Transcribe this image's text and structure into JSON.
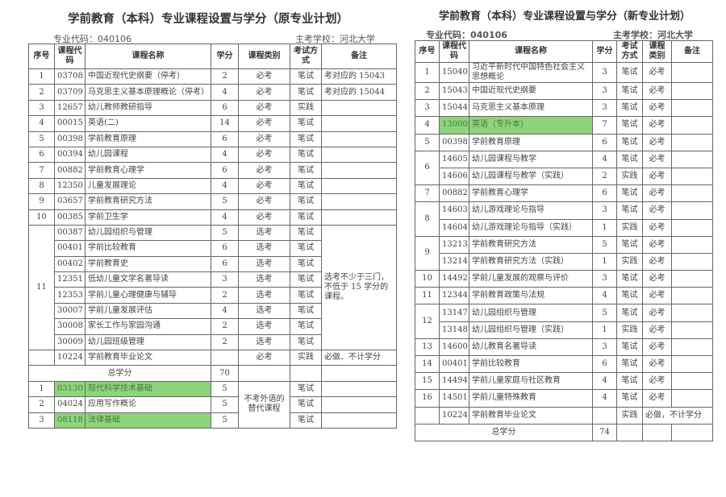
{
  "left": {
    "title": "学前教育（本科）专业课程设置与学分（原专业计划）",
    "major_code": "专业代码：040106",
    "school": "主考学校：河北大学",
    "columns": [
      "序号",
      "课程代码",
      "课程名称",
      "学分",
      "课程类别",
      "考试方式",
      "备注"
    ],
    "keys": [
      "seq",
      "code",
      "name",
      "credit",
      "type",
      "exam",
      "note"
    ],
    "rows": [
      {
        "seq": "1",
        "code": "03708",
        "name": "中国近现代史纲要（停考）",
        "credit": "2",
        "type": "必考",
        "exam": "笔试",
        "note": "考对应的 15043"
      },
      {
        "seq": "2",
        "code": "03709",
        "name": "马克思主义基本原理概论（停考）",
        "credit": "4",
        "type": "必考",
        "exam": "笔试",
        "note": "考对应的 15044"
      },
      {
        "seq": "3",
        "code": "12657",
        "name": "幼儿教师教研指导",
        "credit": "6",
        "type": "必考",
        "exam": "实践",
        "note": ""
      },
      {
        "seq": "4",
        "code": "00015",
        "name": "英语(二)",
        "credit": "14",
        "type": "必考",
        "exam": "笔试",
        "note": ""
      },
      {
        "seq": "5",
        "code": "00398",
        "name": "学前教育原理",
        "credit": "6",
        "type": "必考",
        "exam": "笔试",
        "note": ""
      },
      {
        "seq": "6",
        "code": "00394",
        "name": "幼儿园课程",
        "credit": "4",
        "type": "必考",
        "exam": "笔试",
        "note": ""
      },
      {
        "seq": "7",
        "code": "00882",
        "name": "学前教育心理学",
        "credit": "6",
        "type": "必考",
        "exam": "笔试",
        "note": ""
      },
      {
        "seq": "8",
        "code": "12350",
        "name": "儿童发展理论",
        "credit": "4",
        "type": "必考",
        "exam": "笔试",
        "note": ""
      },
      {
        "seq": "9",
        "code": "03657",
        "name": "学前教育研究方法",
        "credit": "5",
        "type": "必考",
        "exam": "笔试",
        "note": ""
      },
      {
        "seq": "10",
        "code": "00385",
        "name": "学前卫生学",
        "credit": "4",
        "type": "必考",
        "exam": "笔试",
        "note": ""
      },
      {
        "seq": "11",
        "code": "00387",
        "name": "幼儿园组织与管理",
        "credit": "5",
        "type": "选考",
        "exam": "笔试",
        "note": "选考不少于三门，不低于 15 学分的课程。"
      },
      {
        "seq": null,
        "code": "00401",
        "name": "学前比较教育",
        "credit": "6",
        "type": "选考",
        "exam": "笔试",
        "note": null
      },
      {
        "seq": null,
        "code": "00402",
        "name": "学前教育史",
        "credit": "6",
        "type": "选考",
        "exam": "笔试",
        "note": null
      },
      {
        "seq": null,
        "code": "12351",
        "name": "低幼儿童文学名著导读",
        "credit": "3",
        "type": "选考",
        "exam": "笔试",
        "note": null
      },
      {
        "seq": null,
        "code": "12353",
        "name": "学前儿童心理健康与辅导",
        "credit": "2",
        "type": "选考",
        "exam": "笔试",
        "note": null
      },
      {
        "seq": null,
        "code": "30007",
        "name": "学前儿童发展评估",
        "credit": "4",
        "type": "选考",
        "exam": "笔试",
        "note": null
      },
      {
        "seq": null,
        "code": "30008",
        "name": "家长工作与家园沟通",
        "credit": "2",
        "type": "选考",
        "exam": "笔试",
        "note": null
      },
      {
        "seq": null,
        "code": "30009",
        "name": "幼儿园班级管理",
        "credit": "2",
        "type": "选考",
        "exam": "笔试",
        "note": null
      },
      {
        "seq": "",
        "code": "10224",
        "name": "学前教育毕业论文",
        "credit": "",
        "type": "必考",
        "exam": "实践",
        "note": "必做、不计学分"
      },
      {
        "total_label": "总学分",
        "credit": "70",
        "type": "",
        "exam": "",
        "note": ""
      },
      {
        "seq": "1",
        "code": "03130",
        "name": "现代科学技术基础",
        "credit": "5",
        "type": "不考外语的替代课程",
        "exam": "笔试",
        "note": "",
        "hl": true
      },
      {
        "seq": "2",
        "code": "04024",
        "name": "应用写作概论",
        "credit": "5",
        "type": null,
        "exam": "笔试",
        "note": ""
      },
      {
        "seq": "3",
        "code": "08118",
        "name": "法律基础",
        "credit": "5",
        "type": null,
        "exam": "笔试",
        "note": "",
        "hl": true
      }
    ]
  },
  "right": {
    "title": "学前教育（本科）专业课程设置与学分（新专业计划）",
    "major_code": "专业代码：040106",
    "school": "主考学校：河北大学",
    "columns": [
      "序号",
      "课程代码",
      "课程名称",
      "学分",
      "考试方式",
      "课程类别",
      "备注"
    ],
    "keys": [
      "seq",
      "code",
      "name",
      "credit",
      "exam",
      "type",
      "note"
    ],
    "rows": [
      {
        "seq": "1",
        "code": "15040",
        "name": "习近平新时代中国特色社会主义思想概论",
        "credit": "3",
        "exam": "笔试",
        "type": "必考",
        "note": "",
        "tall": true
      },
      {
        "seq": "2",
        "code": "15043",
        "name": "中国近现代史纲要",
        "credit": "3",
        "exam": "笔试",
        "type": "必考",
        "note": ""
      },
      {
        "seq": "3",
        "code": "15044",
        "name": "马克思主义基本原理",
        "credit": "3",
        "exam": "笔试",
        "type": "必考",
        "note": ""
      },
      {
        "seq": "4",
        "code": "13000",
        "name": "英语（专升本）",
        "credit": "7",
        "exam": "笔试",
        "type": "必考",
        "note": "",
        "hl": true
      },
      {
        "seq": "5",
        "code": "00398",
        "name": "学前教育原理",
        "credit": "6",
        "exam": "笔试",
        "type": "必考",
        "note": ""
      },
      {
        "seq": "6",
        "code": "14605",
        "name": "幼儿园课程与教学",
        "credit": "4",
        "exam": "笔试",
        "type": "必考",
        "note": ""
      },
      {
        "seq": null,
        "code": "14606",
        "name": "幼儿园课程与教学（实践）",
        "credit": "2",
        "exam": "实践",
        "type": "必考",
        "note": ""
      },
      {
        "seq": "7",
        "code": "00882",
        "name": "学前教育心理学",
        "credit": "6",
        "exam": "笔试",
        "type": "必考",
        "note": ""
      },
      {
        "seq": "8",
        "code": "14603",
        "name": "幼儿游戏理论与指导",
        "credit": "3",
        "exam": "笔试",
        "type": "必考",
        "note": ""
      },
      {
        "seq": null,
        "code": "14604",
        "name": "幼儿游戏理论与指导（实践）",
        "credit": "1",
        "exam": "实践",
        "type": "必考",
        "note": ""
      },
      {
        "seq": "9",
        "code": "13213",
        "name": "学前教育研究方法",
        "credit": "5",
        "exam": "笔试",
        "type": "必考",
        "note": ""
      },
      {
        "seq": null,
        "code": "13214",
        "name": "学前教育研究方法（实践）",
        "credit": "1",
        "exam": "实践",
        "type": "必考",
        "note": ""
      },
      {
        "seq": "10",
        "code": "14492",
        "name": "学前儿童发展的观察与评价",
        "credit": "3",
        "exam": "笔试",
        "type": "必考",
        "note": ""
      },
      {
        "seq": "11",
        "code": "12344",
        "name": "学前教育政策与法规",
        "credit": "4",
        "exam": "笔试",
        "type": "必考",
        "note": ""
      },
      {
        "seq": "12",
        "code": "13147",
        "name": "幼儿园组织与管理",
        "credit": "5",
        "exam": "笔试",
        "type": "必考",
        "note": ""
      },
      {
        "seq": null,
        "code": "13148",
        "name": "幼儿园组织与管理（实践）",
        "credit": "1",
        "exam": "实践",
        "type": "必考",
        "note": ""
      },
      {
        "seq": "13",
        "code": "14600",
        "name": "幼儿教育名著导读",
        "credit": "3",
        "exam": "笔试",
        "type": "必考",
        "note": ""
      },
      {
        "seq": "14",
        "code": "00401",
        "name": "学前比较教育",
        "credit": "6",
        "exam": "笔试",
        "type": "必考",
        "note": ""
      },
      {
        "seq": "15",
        "code": "14494",
        "name": "学前儿童家庭与社区教育",
        "credit": "4",
        "exam": "笔试",
        "type": "必考",
        "note": ""
      },
      {
        "seq": "16",
        "code": "14501",
        "name": "学前儿童特殊教育",
        "credit": "4",
        "exam": "笔试",
        "type": "必考",
        "note": ""
      },
      {
        "seq": "",
        "code": "10224",
        "name": "学前教育毕业论文",
        "credit": "",
        "exam": "实践",
        "type_note": "必做，不计学分"
      },
      {
        "total_label": "总学分",
        "credit": "74",
        "exam": "",
        "type": "",
        "note": ""
      }
    ]
  },
  "colors": {
    "highlight": "#8ed47c",
    "border": "#666666"
  }
}
